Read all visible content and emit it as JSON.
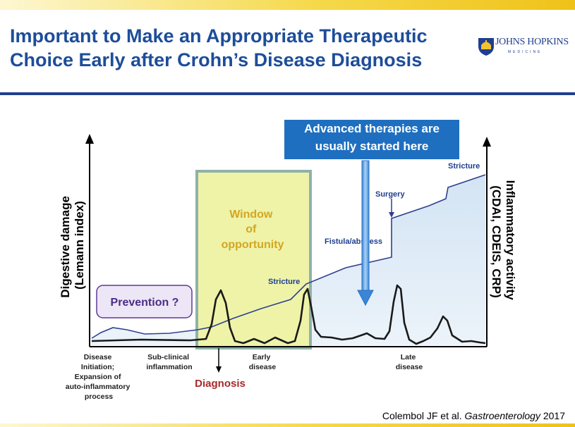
{
  "title": {
    "line1": "Important to Make an Appropriate Therapeutic",
    "line2": "Choice Early after Crohn’s Disease Diagnosis"
  },
  "logo": {
    "name": "JOHNS HOPKINS",
    "sub": "MEDICINE",
    "icon": "shield-dome-icon"
  },
  "callout": {
    "line1": "Advanced therapies are",
    "line2": "usually started here"
  },
  "axes": {
    "left": {
      "line1": "Digestive damage",
      "line2": "(Lemann index)"
    },
    "right": {
      "line1": "Inflammatory activity",
      "line2": "(CDAI, CDEIS, CRP)"
    }
  },
  "labels": {
    "prevention": "Prevention ?",
    "window": {
      "line1": "Window",
      "line2": "of",
      "line3": "opportunity"
    },
    "stricture_mid": "Stricture",
    "stricture_top": "Stricture",
    "fistula": "Fistula/abscess",
    "surgery": "Surgery",
    "diagnosis": "Diagnosis"
  },
  "stages": {
    "initiation": {
      "line1": "Disease",
      "line2": "Initiation;",
      "line3": "Expansion of",
      "line4": "auto-inflammatory",
      "line5": "process"
    },
    "subclinical": {
      "line1": "Sub-clinical",
      "line2": "inflammation"
    },
    "early": {
      "line1": "Early",
      "line2": "disease"
    },
    "late": {
      "line1": "Late",
      "line2": "disease"
    }
  },
  "citation": {
    "authors": "Colembol JF et al.",
    "journal": "Gastroenterology",
    "year": "2017"
  },
  "colors": {
    "title": "#1d4d9a",
    "callout_bg": "#1f6fc0",
    "window_fill": "#eef3a8",
    "window_border": "#8fb2a9",
    "window_text": "#d4a521",
    "damage_fill": "#dbe9f5",
    "damage_line": "#2f3f8f",
    "prevention_text": "#4a2d86",
    "diagnosis_text": "#a62a2a"
  }
}
